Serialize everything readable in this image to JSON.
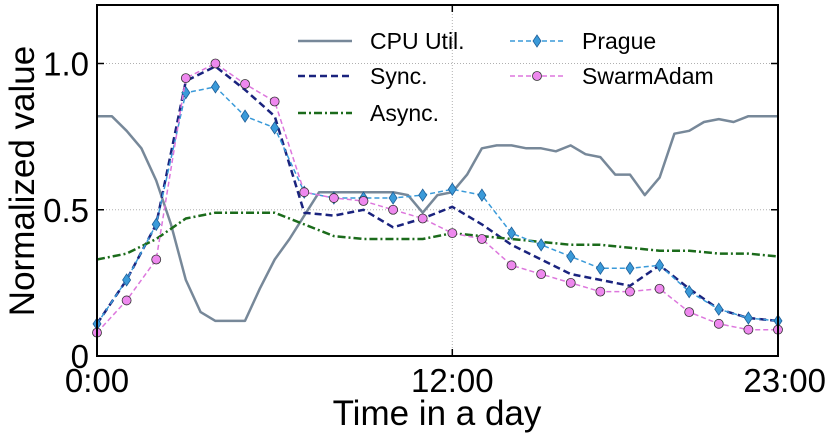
{
  "chart_data": {
    "type": "line",
    "xlabel": "Time in a day",
    "ylabel": "Normalized value",
    "xlim": [
      0,
      23
    ],
    "ylim": [
      0,
      1.2
    ],
    "xticks": [
      {
        "value": 0,
        "label": "0:00"
      },
      {
        "value": 12,
        "label": "12:00"
      },
      {
        "value": 23,
        "label": "23:00"
      }
    ],
    "yticks": [
      {
        "value": 0,
        "label": "0"
      },
      {
        "value": 0.5,
        "label": "0.5"
      },
      {
        "value": 1.0,
        "label": "1.0"
      }
    ],
    "grid": true,
    "legend": "top-center",
    "series": [
      {
        "name": "CPU Util.",
        "color": "#778899",
        "style": "solid",
        "marker": "none",
        "x": [
          0,
          0.5,
          1,
          1.5,
          2,
          2.5,
          3,
          3.5,
          4,
          4.5,
          5,
          5.5,
          6,
          6.5,
          7,
          7.5,
          8,
          8.5,
          9,
          9.5,
          10,
          10.5,
          11,
          11.5,
          12,
          12.5,
          13,
          13.5,
          14,
          14.5,
          15,
          15.5,
          16,
          16.5,
          17,
          17.5,
          18,
          18.5,
          19,
          19.5,
          20,
          20.5,
          21,
          21.5,
          22,
          22.5,
          23
        ],
        "values": [
          0.82,
          0.82,
          0.77,
          0.71,
          0.6,
          0.45,
          0.26,
          0.15,
          0.12,
          0.12,
          0.12,
          0.23,
          0.33,
          0.4,
          0.48,
          0.56,
          0.56,
          0.56,
          0.56,
          0.56,
          0.56,
          0.55,
          0.49,
          0.55,
          0.56,
          0.62,
          0.71,
          0.72,
          0.72,
          0.71,
          0.71,
          0.7,
          0.72,
          0.69,
          0.68,
          0.62,
          0.62,
          0.55,
          0.61,
          0.76,
          0.77,
          0.8,
          0.81,
          0.8,
          0.82,
          0.82,
          0.82
        ]
      },
      {
        "name": "Sync.",
        "color": "#1a237e",
        "style": "dashed",
        "marker": "none",
        "x": [
          0,
          1,
          2,
          3,
          4,
          5,
          6,
          7,
          8,
          9,
          10,
          11,
          12,
          13,
          14,
          15,
          16,
          17,
          18,
          19,
          20,
          21,
          22,
          23
        ],
        "values": [
          0.11,
          0.26,
          0.45,
          0.94,
          0.99,
          0.91,
          0.82,
          0.49,
          0.48,
          0.5,
          0.44,
          0.47,
          0.51,
          0.45,
          0.38,
          0.33,
          0.28,
          0.26,
          0.24,
          0.31,
          0.23,
          0.16,
          0.13,
          0.12
        ]
      },
      {
        "name": "Async.",
        "color": "#1b6b1b",
        "style": "dashdot",
        "marker": "none",
        "x": [
          0,
          1,
          2,
          3,
          4,
          5,
          6,
          7,
          8,
          9,
          10,
          11,
          12,
          13,
          14,
          15,
          16,
          17,
          18,
          19,
          20,
          21,
          22,
          23
        ],
        "values": [
          0.33,
          0.35,
          0.4,
          0.47,
          0.49,
          0.49,
          0.49,
          0.45,
          0.41,
          0.4,
          0.4,
          0.4,
          0.42,
          0.41,
          0.4,
          0.39,
          0.38,
          0.38,
          0.37,
          0.36,
          0.36,
          0.35,
          0.35,
          0.34
        ]
      },
      {
        "name": "Prague",
        "color": "#3a9ad9",
        "style": "dashed",
        "marker": "diamond",
        "x": [
          0,
          1,
          2,
          3,
          4,
          5,
          6,
          7,
          8,
          9,
          10,
          11,
          12,
          13,
          14,
          15,
          16,
          17,
          18,
          19,
          20,
          21,
          22,
          23
        ],
        "values": [
          0.11,
          0.26,
          0.45,
          0.9,
          0.92,
          0.82,
          0.78,
          0.56,
          0.54,
          0.54,
          0.54,
          0.55,
          0.57,
          0.55,
          0.42,
          0.38,
          0.34,
          0.3,
          0.3,
          0.31,
          0.22,
          0.16,
          0.13,
          0.12
        ]
      },
      {
        "name": "SwarmAdam",
        "color": "#dd77dd",
        "style": "dashed",
        "marker": "circle",
        "x": [
          0,
          1,
          2,
          3,
          4,
          5,
          6,
          7,
          8,
          9,
          10,
          11,
          12,
          13,
          14,
          15,
          16,
          17,
          18,
          19,
          20,
          21,
          22,
          23
        ],
        "values": [
          0.08,
          0.19,
          0.33,
          0.95,
          1.0,
          0.93,
          0.87,
          0.56,
          0.54,
          0.53,
          0.5,
          0.47,
          0.42,
          0.4,
          0.31,
          0.28,
          0.25,
          0.22,
          0.22,
          0.23,
          0.15,
          0.11,
          0.09,
          0.09
        ]
      }
    ]
  }
}
